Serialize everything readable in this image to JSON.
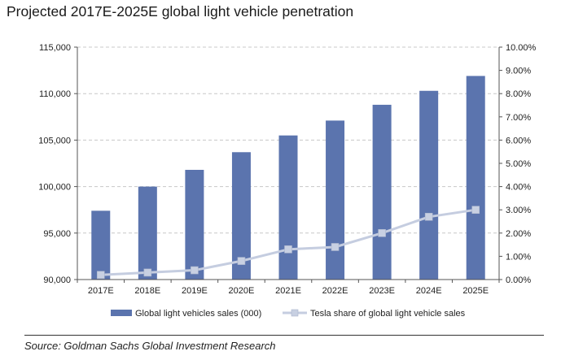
{
  "chart_data": {
    "type": "bar",
    "title": "Projected 2017E-2025E global light vehicle penetration",
    "categories": [
      "2017E",
      "2018E",
      "2019E",
      "2020E",
      "2021E",
      "2022E",
      "2023E",
      "2024E",
      "2025E"
    ],
    "series": [
      {
        "name": "Global light vehicles sales (000)",
        "type": "bar",
        "axis": "left",
        "color": "#5b74ae",
        "values": [
          97400,
          100000,
          101800,
          103700,
          105500,
          107100,
          108800,
          110300,
          111900
        ]
      },
      {
        "name": "Tesla share of global light vehicle sales",
        "type": "line",
        "axis": "right",
        "color": "#c5cde0",
        "values": [
          0.2,
          0.3,
          0.4,
          0.8,
          1.3,
          1.4,
          2.0,
          2.7,
          3.0
        ]
      }
    ],
    "ylim": [
      90000,
      115000
    ],
    "yticks": [
      "90,000",
      "95,000",
      "100,000",
      "105,000",
      "110,000",
      "115,000"
    ],
    "y2lim": [
      0,
      10
    ],
    "y2ticks": [
      "0.00%",
      "1.00%",
      "2.00%",
      "3.00%",
      "4.00%",
      "5.00%",
      "6.00%",
      "7.00%",
      "8.00%",
      "9.00%",
      "10.00%"
    ],
    "grid": true,
    "legend_position": "bottom"
  },
  "source": "Source: Goldman Sachs Global Investment Research"
}
